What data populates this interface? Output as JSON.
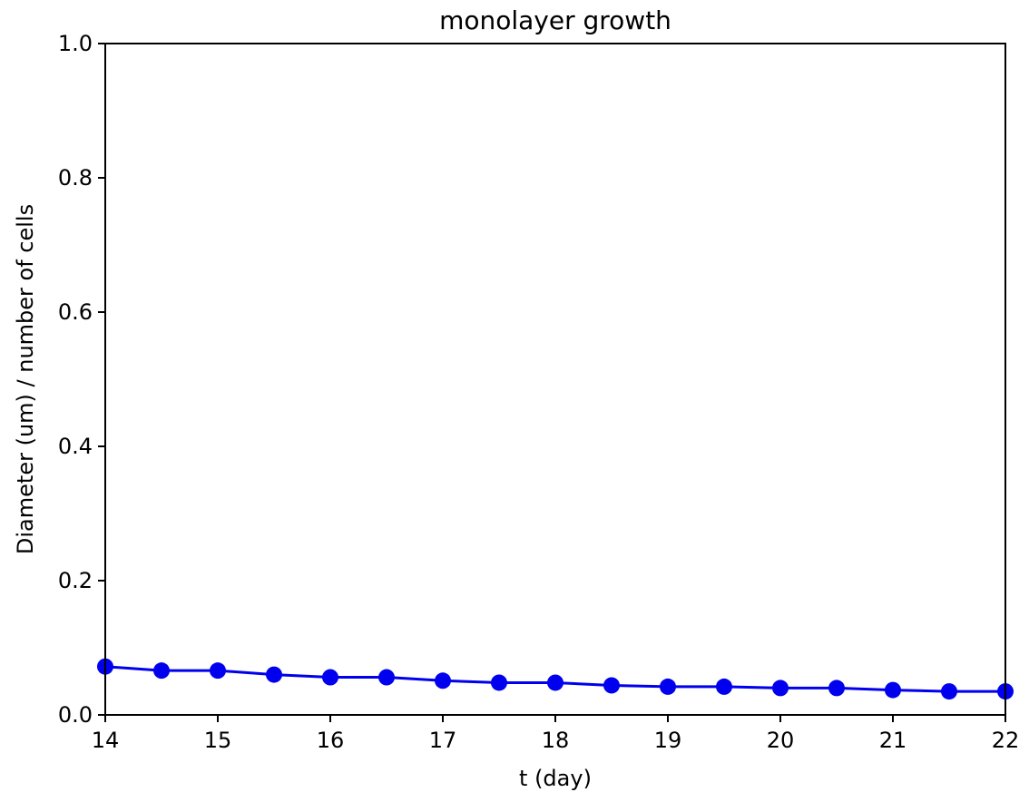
{
  "chart_data": {
    "type": "line",
    "title": "monolayer growth",
    "xlabel": "t (day)",
    "ylabel": "Diameter (um) / number of cells",
    "xlim": [
      14,
      22
    ],
    "ylim": [
      0.0,
      1.0
    ],
    "x_ticks": [
      "14",
      "15",
      "16",
      "17",
      "18",
      "19",
      "20",
      "21",
      "22"
    ],
    "y_ticks": [
      "0.0",
      "0.2",
      "0.4",
      "0.6",
      "0.8",
      "1.0"
    ],
    "grid": false,
    "series": [
      {
        "name": "monolayer",
        "color": "#0000ee",
        "marker": "circle",
        "x": [
          14,
          14.5,
          15,
          15.5,
          16,
          16.5,
          17,
          17.5,
          18,
          18.5,
          19,
          19.5,
          20,
          20.5,
          21,
          21.5,
          22
        ],
        "values": [
          0.072,
          0.066,
          0.066,
          0.06,
          0.056,
          0.056,
          0.051,
          0.048,
          0.048,
          0.044,
          0.042,
          0.042,
          0.04,
          0.04,
          0.037,
          0.035,
          0.035
        ]
      }
    ]
  }
}
